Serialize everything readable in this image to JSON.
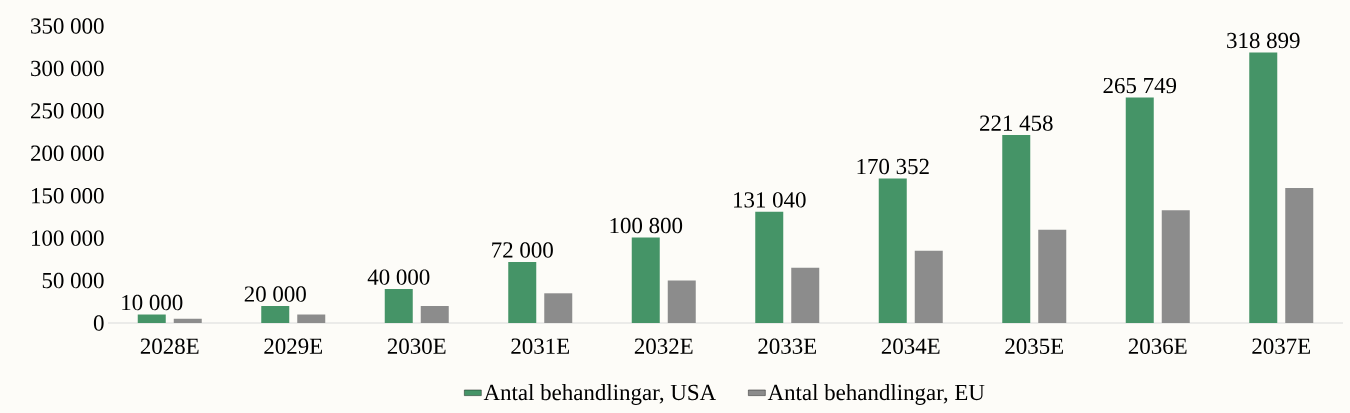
{
  "chart_data": {
    "type": "bar",
    "categories": [
      "2028E",
      "2029E",
      "2030E",
      "2031E",
      "2032E",
      "2033E",
      "2034E",
      "2035E",
      "2036E",
      "2037E"
    ],
    "series": [
      {
        "name": "Antal behandlingar, USA",
        "color": "#459467",
        "values": [
          10000,
          20000,
          40000,
          72000,
          100800,
          131040,
          170352,
          221458,
          265749,
          318899
        ],
        "value_labels": [
          "10 000",
          "20 000",
          "40 000",
          "72 000",
          "100 800",
          "131 040",
          "170 352",
          "221 458",
          "265 749",
          "318 899"
        ]
      },
      {
        "name": "Antal behandlingar, EU",
        "color": "#8c8c8c",
        "values": [
          5000,
          10000,
          20000,
          35000,
          50000,
          65000,
          85000,
          110000,
          133000,
          159000
        ]
      }
    ],
    "ylim": [
      0,
      350000
    ],
    "yticks": [
      {
        "value": 0,
        "label": "0"
      },
      {
        "value": 50000,
        "label": "50 000"
      },
      {
        "value": 100000,
        "label": "100 000"
      },
      {
        "value": 150000,
        "label": "150 000"
      },
      {
        "value": 200000,
        "label": "200 000"
      },
      {
        "value": 250000,
        "label": "250 000"
      },
      {
        "value": 300000,
        "label": "300 000"
      },
      {
        "value": 350000,
        "label": "350 000"
      }
    ],
    "legend": "bottom"
  }
}
